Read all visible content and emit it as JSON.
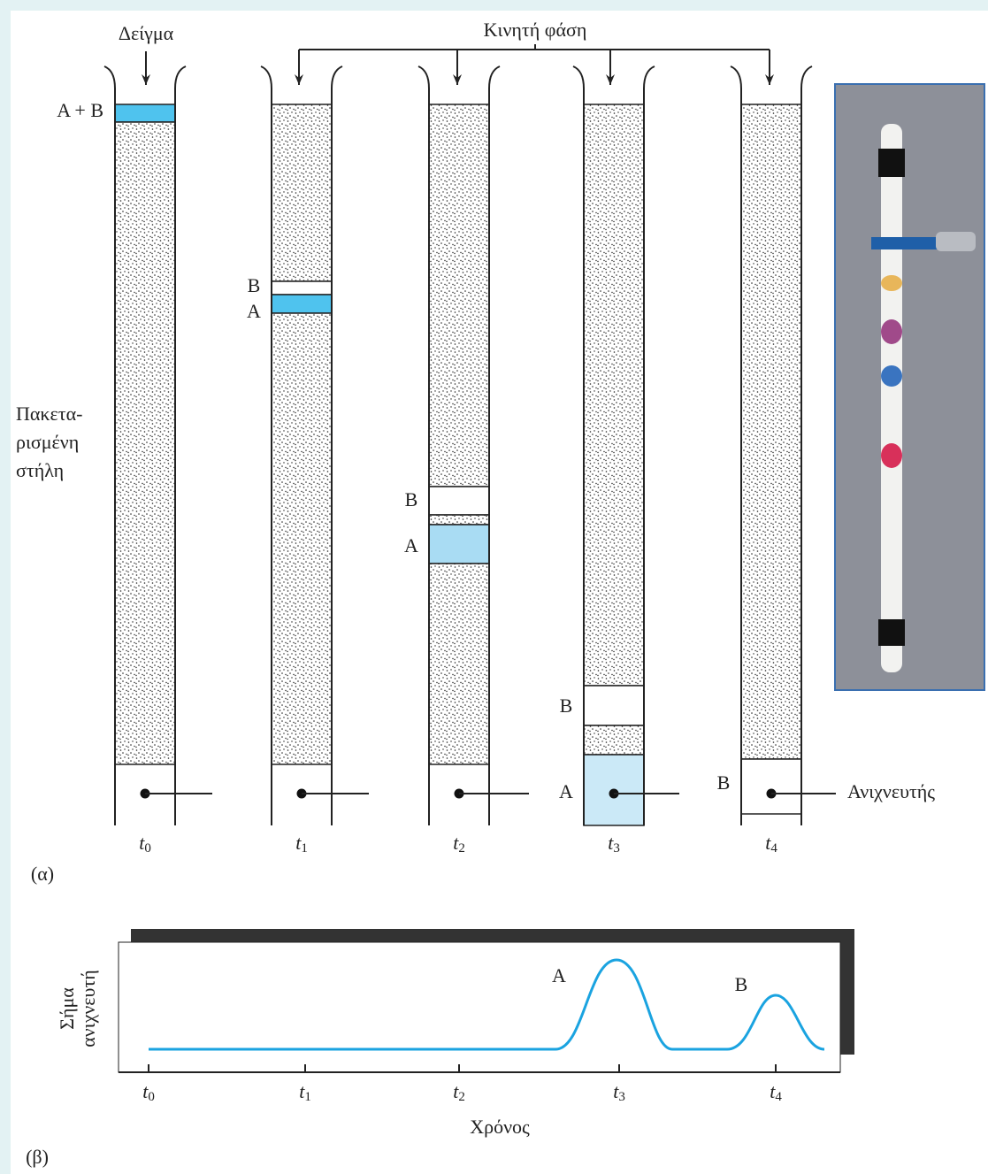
{
  "panel_a": {
    "label": "(α)",
    "sample_label": "Δείγμα",
    "mobile_phase_label": "Κινητή φάση",
    "initial_band": "A + B",
    "column_label": [
      "Πακετα-",
      "ρισμένη",
      "στήλη"
    ],
    "detector_label": "Ανιχνευτής",
    "columns": [
      {
        "time": {
          "symbol": "t",
          "index": "0"
        }
      },
      {
        "time": {
          "symbol": "t",
          "index": "1"
        },
        "band_labels": [
          "B",
          "A"
        ]
      },
      {
        "time": {
          "symbol": "t",
          "index": "2"
        },
        "band_labels": [
          "B",
          "A"
        ]
      },
      {
        "time": {
          "symbol": "t",
          "index": "3"
        },
        "band_labels": [
          "B",
          "A"
        ]
      },
      {
        "time": {
          "symbol": "t",
          "index": "4"
        },
        "band_labels": [
          "B"
        ]
      }
    ]
  },
  "panel_b": {
    "label": "(β)",
    "y_axis_label": [
      "Σήμα",
      "ανιχνευτή"
    ],
    "x_axis_label": "Χρόνος",
    "peaks": [
      "A",
      "B"
    ],
    "time_ticks": [
      {
        "symbol": "t",
        "index": "0"
      },
      {
        "symbol": "t",
        "index": "1"
      },
      {
        "symbol": "t",
        "index": "2"
      },
      {
        "symbol": "t",
        "index": "3"
      },
      {
        "symbol": "t",
        "index": "4"
      }
    ]
  }
}
